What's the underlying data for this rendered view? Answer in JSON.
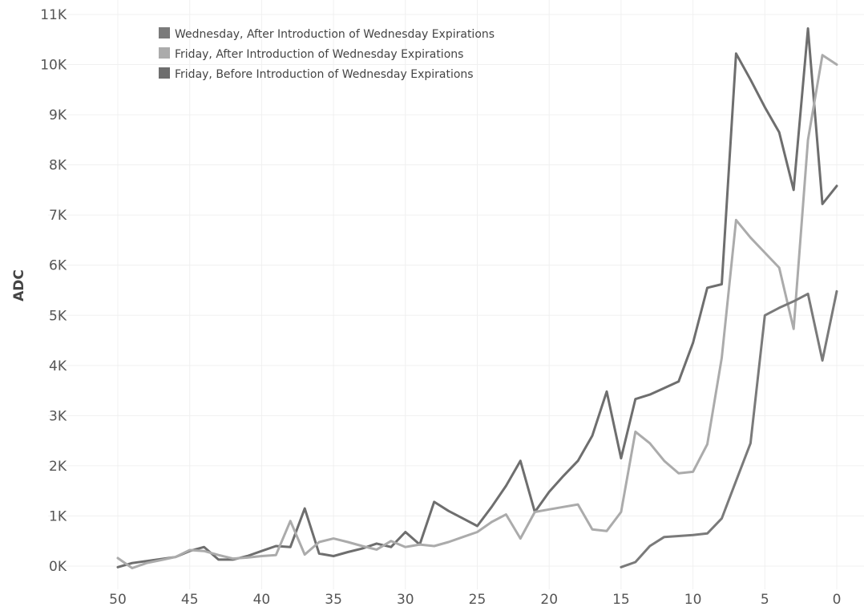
{
  "chart_data": {
    "type": "line",
    "title": "",
    "xlabel": "",
    "ylabel": "ADC",
    "xlim": [
      50,
      0
    ],
    "ylim": [
      0,
      11000
    ],
    "x_ticks": [
      50,
      45,
      40,
      35,
      30,
      25,
      20,
      15,
      10,
      5,
      0
    ],
    "x_tick_labels": [
      "50",
      "45",
      "40",
      "35",
      "30",
      "25",
      "20",
      "15",
      "10",
      "5",
      "0"
    ],
    "y_ticks": [
      0,
      1000,
      2000,
      3000,
      4000,
      5000,
      6000,
      7000,
      8000,
      9000,
      10000,
      11000
    ],
    "y_tick_labels": [
      "0K",
      "1K",
      "2K",
      "3K",
      "4K",
      "5K",
      "6K",
      "7K",
      "8K",
      "9K",
      "10K",
      "11K"
    ],
    "grid": true,
    "legend_position": "top-left",
    "series": [
      {
        "name": "Friday, Before Introduction of Wednesday Expirations",
        "color": "#6e6e6e",
        "x": [
          50,
          49,
          48,
          47,
          46,
          45,
          44,
          43,
          42,
          41,
          40,
          39,
          38,
          37,
          36,
          35,
          34,
          33,
          32,
          31,
          30,
          29,
          28,
          27,
          26,
          25,
          24,
          23,
          22,
          21,
          20,
          19,
          18,
          17,
          16,
          15,
          14,
          13,
          12,
          11,
          10,
          9,
          8,
          7,
          6,
          5,
          4,
          3,
          2,
          1,
          0
        ],
        "values": [
          -20,
          60,
          100,
          140,
          180,
          300,
          380,
          130,
          130,
          200,
          300,
          400,
          380,
          1150,
          250,
          200,
          280,
          350,
          450,
          380,
          680,
          430,
          1280,
          1100,
          950,
          800,
          1180,
          1600,
          2100,
          1080,
          1480,
          1800,
          2100,
          2600,
          3480,
          2150,
          3330,
          3420,
          3550,
          3680,
          4450,
          5550,
          5620,
          10220,
          9700,
          9150,
          8650,
          7500,
          10720,
          7220,
          7580
        ]
      },
      {
        "name": "Friday, After Introduction of Wednesday Expirations",
        "color": "#ababab",
        "x": [
          50,
          49,
          48,
          47,
          46,
          45,
          44,
          43,
          42,
          41,
          40,
          39,
          38,
          37,
          36,
          35,
          34,
          33,
          32,
          31,
          30,
          29,
          28,
          27,
          26,
          25,
          24,
          23,
          22,
          21,
          20,
          19,
          18,
          17,
          16,
          15,
          14,
          13,
          12,
          11,
          10,
          9,
          8,
          7,
          6,
          5,
          4,
          3,
          2,
          1,
          0
        ],
        "values": [
          160,
          -40,
          60,
          120,
          180,
          320,
          300,
          220,
          150,
          170,
          200,
          220,
          900,
          230,
          480,
          550,
          480,
          400,
          330,
          500,
          380,
          430,
          400,
          480,
          580,
          680,
          880,
          1030,
          550,
          1080,
          1130,
          1180,
          1230,
          730,
          700,
          1080,
          2680,
          2450,
          2100,
          1850,
          1880,
          2430,
          4150,
          6900,
          6550,
          6250,
          5950,
          4730,
          8500,
          10190,
          10000
        ]
      },
      {
        "name": "Wednesday, After Introduction of Wednesday Expirations",
        "color": "#7a7a7a",
        "x": [
          15,
          14,
          13,
          12,
          11,
          10,
          9,
          8,
          7,
          6,
          5,
          4,
          3,
          2,
          1,
          0
        ],
        "values": [
          -20,
          80,
          400,
          580,
          600,
          620,
          650,
          950,
          1700,
          2450,
          5000,
          5150,
          5280,
          5430,
          4100,
          5480
        ]
      }
    ]
  }
}
